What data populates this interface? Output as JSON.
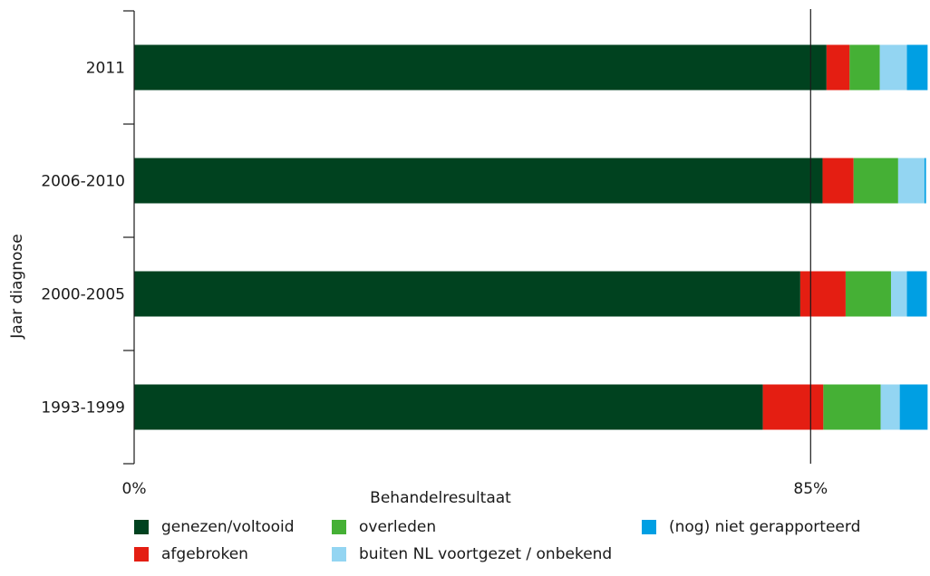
{
  "chart_data": {
    "type": "bar",
    "orientation": "horizontal",
    "stacked": true,
    "xlabel": "Behandelresultaat",
    "ylabel": "Jaar diagnose",
    "x_ticks": [
      "0%",
      "85%"
    ],
    "reference_line": 85,
    "xlim": [
      0,
      100
    ],
    "categories": [
      "2011",
      "2006-2010",
      "2000-2005",
      "1993-1999"
    ],
    "series": [
      {
        "name": "genezen/voltooid",
        "color": "#00421f",
        "values": [
          87.0,
          86.5,
          83.7,
          79.0
        ]
      },
      {
        "name": "afgebroken",
        "color": "#e41e12",
        "values": [
          2.9,
          3.9,
          5.7,
          7.6
        ]
      },
      {
        "name": "overleden",
        "color": "#45b035",
        "values": [
          3.8,
          5.6,
          5.7,
          7.2
        ]
      },
      {
        "name": "buiten NL voortgezet / onbekend",
        "color": "#93d5f2",
        "values": [
          3.4,
          3.3,
          2.0,
          2.4
        ]
      },
      {
        "name": "(nog) niet gerapporteerd",
        "color": "#009fe3",
        "values": [
          2.6,
          0.2,
          2.5,
          3.5
        ]
      }
    ],
    "legend_position": "bottom",
    "grid": false
  }
}
